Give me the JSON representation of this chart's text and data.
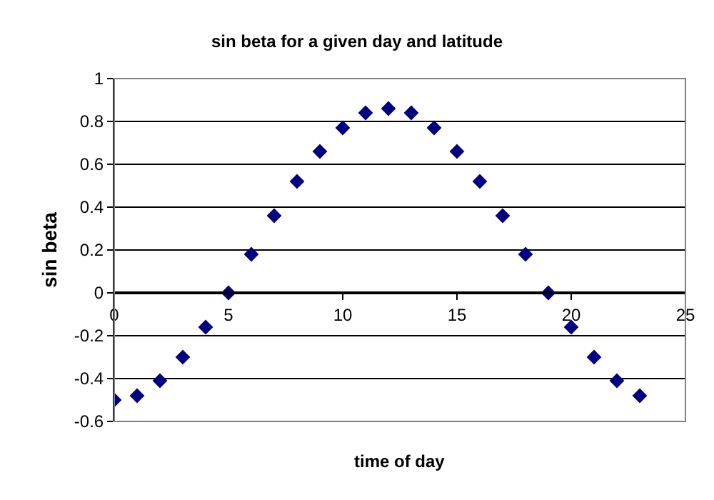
{
  "chart_data": {
    "type": "scatter",
    "title": "sin beta for a given day and latitude",
    "xlabel": "time of day",
    "ylabel": "sin beta",
    "x": [
      0,
      1,
      2,
      3,
      4,
      5,
      6,
      7,
      8,
      9,
      10,
      11,
      12,
      13,
      14,
      15,
      16,
      17,
      18,
      19,
      20,
      21,
      22,
      23
    ],
    "series": [
      {
        "color": "#000080",
        "values": [
          -0.5,
          -0.48,
          -0.41,
          -0.3,
          -0.16,
          0.0,
          0.18,
          0.36,
          0.52,
          0.66,
          0.77,
          0.84,
          0.86,
          0.84,
          0.77,
          0.66,
          0.52,
          0.36,
          0.18,
          0.0,
          -0.16,
          -0.3,
          -0.41,
          -0.48
        ]
      }
    ],
    "xlim": [
      0,
      25
    ],
    "xticks": [
      0,
      5,
      10,
      15,
      20,
      25
    ],
    "ylim": [
      -0.6,
      1
    ],
    "yticks": [
      -0.6,
      -0.4,
      -0.2,
      0,
      0.2,
      0.4,
      0.6,
      0.8,
      1
    ],
    "grid": "y",
    "marker": "diamond"
  }
}
